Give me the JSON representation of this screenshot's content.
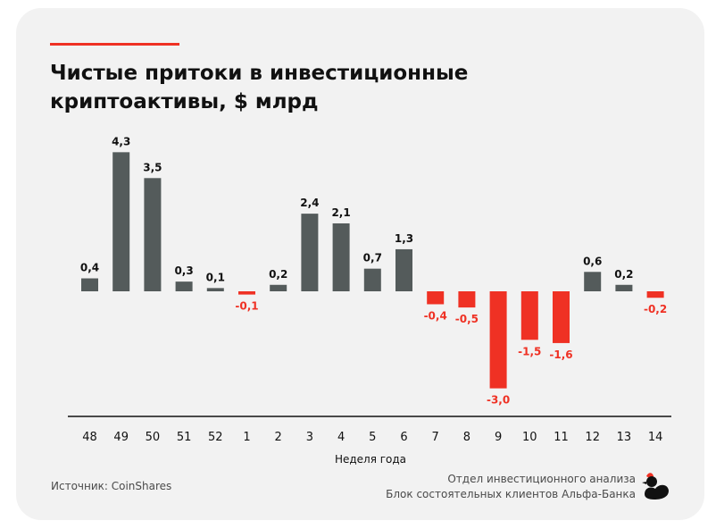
{
  "title_line1": "Чистые притоки в инвестиционные",
  "title_line2": "криптоактивы, $ млрд",
  "source": "Источник: CoinShares",
  "credit_line1": "Отдел инвестиционного анализа",
  "credit_line2": "Блок состоятельных клиентов Альфа-Банка",
  "colors": {
    "positive": "#545b5b",
    "negative": "#ef3124",
    "accent": "#ef3124",
    "background": "#f2f2f2"
  },
  "logo_icon": "duck-icon",
  "chart_data": {
    "type": "bar",
    "title": "Чистые притоки в инвестиционные криптоактивы, $ млрд",
    "xlabel": "Неделя года",
    "ylabel": "",
    "categories": [
      "48",
      "49",
      "50",
      "51",
      "52",
      "1",
      "2",
      "3",
      "4",
      "5",
      "6",
      "7",
      "8",
      "9",
      "10",
      "11",
      "12",
      "13",
      "14"
    ],
    "values": [
      0.4,
      4.3,
      3.5,
      0.3,
      0.1,
      -0.1,
      0.2,
      2.4,
      2.1,
      0.7,
      1.3,
      -0.4,
      -0.5,
      -3.0,
      -1.5,
      -1.6,
      0.6,
      0.2,
      -0.2
    ],
    "labels": [
      "0,4",
      "4,3",
      "3,5",
      "0,3",
      "0,1",
      "-0,1",
      "0,2",
      "2,4",
      "2,1",
      "0,7",
      "1,3",
      "-0,4",
      "-0,5",
      "-3,0",
      "-1,5",
      "-1,6",
      "0,6",
      "0,2",
      "-0,2"
    ],
    "ylim": [
      -3.9,
      4.3
    ],
    "grid": false,
    "legend": "none"
  }
}
